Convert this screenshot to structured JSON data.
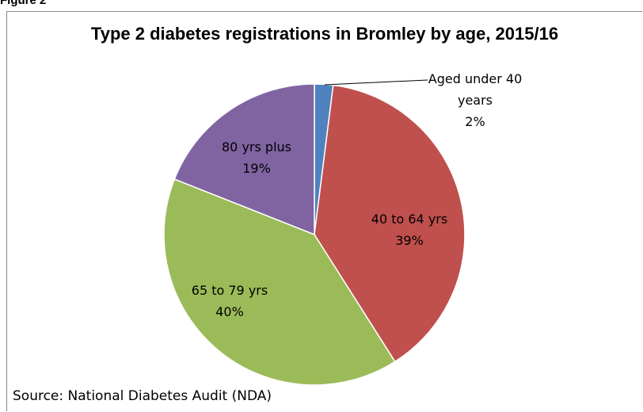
{
  "figure_label": "Figure 2",
  "chart_data": {
    "type": "pie",
    "title": "Type 2 diabetes registrations in Bromley by age, 2015/16",
    "categories": [
      "Aged under 40 years",
      "40 to 64 yrs",
      "65 to 79 yrs",
      "80 yrs plus"
    ],
    "values": [
      2,
      39,
      40,
      19
    ],
    "value_labels": [
      "2%",
      "39%",
      "40%",
      "19%"
    ],
    "colors": [
      "#4f81bd",
      "#c0504d",
      "#9bbb59",
      "#8064a2"
    ],
    "source": "Source:  National Diabetes Audit (NDA)"
  }
}
